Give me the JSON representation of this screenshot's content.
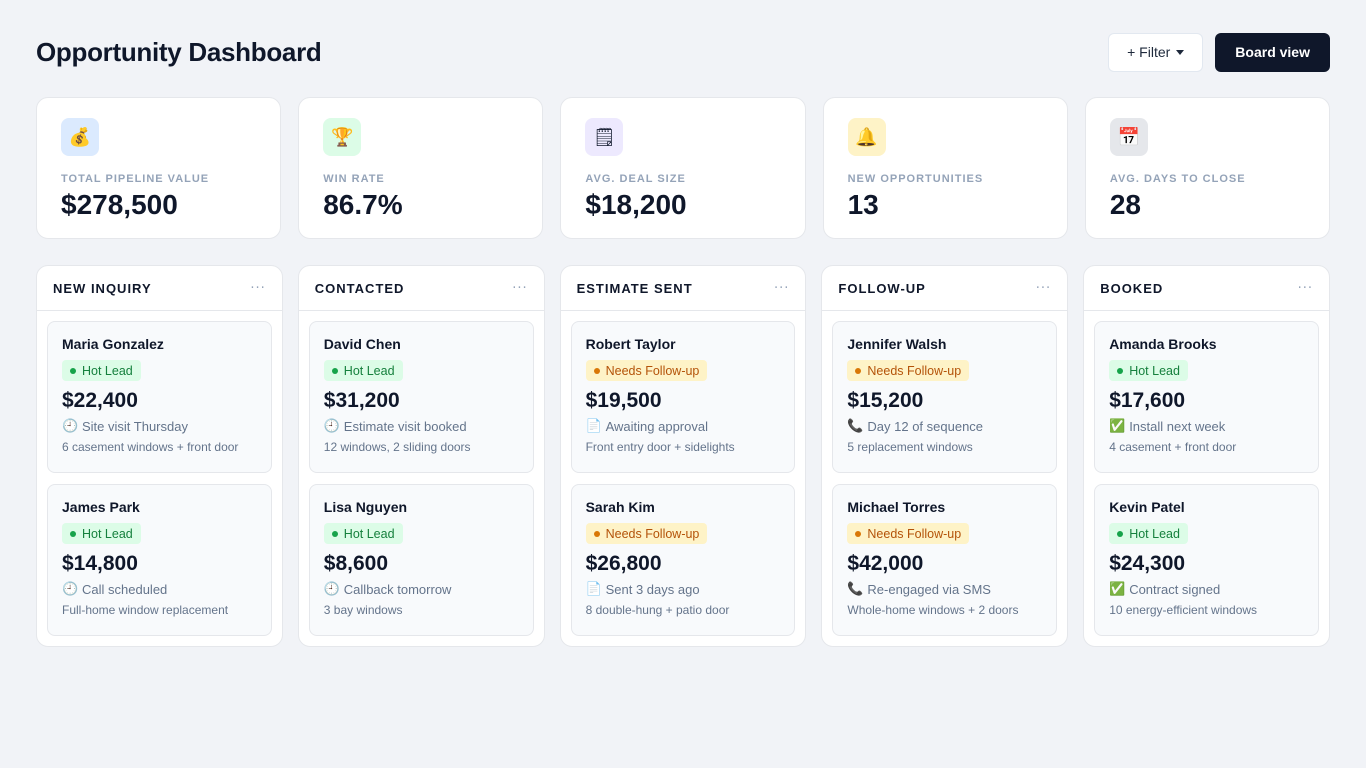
{
  "header": {
    "title": "Opportunity Dashboard",
    "filter_label": "+ Filter",
    "board_view_label": "Board view"
  },
  "stats": [
    {
      "icon": "money-bag-icon",
      "glyph": "💰",
      "bg": "#dbeafe",
      "label": "TOTAL PIPELINE VALUE",
      "value": "$278,500"
    },
    {
      "icon": "trophy-icon",
      "glyph": "🏆",
      "bg": "#dcfce7",
      "label": "WIN RATE",
      "value": "86.7%"
    },
    {
      "icon": "clipboard-icon",
      "glyph": "🗒",
      "bg": "#ede9fe",
      "label": "AVG. DEAL SIZE",
      "value": "$18,200"
    },
    {
      "icon": "bell-icon",
      "glyph": "🔔",
      "bg": "#fef3c7",
      "label": "NEW OPPORTUNITIES",
      "value": "13"
    },
    {
      "icon": "calendar-icon",
      "glyph": "📅",
      "bg": "#e5e7eb",
      "label": "AVG. DAYS TO CLOSE",
      "value": "28"
    }
  ],
  "columns": [
    {
      "title": "NEW INQUIRY",
      "more": "···",
      "cards": [
        {
          "name": "Maria Gonzalez",
          "badge": "Hot Lead",
          "badge_type": "hot",
          "amount": "$22,400",
          "status_icon": "clock-icon",
          "status_glyph": "🕘",
          "status": "Site visit Thursday",
          "detail": "6 casement windows + front door"
        },
        {
          "name": "James Park",
          "badge": "Hot Lead",
          "badge_type": "hot",
          "amount": "$14,800",
          "status_icon": "clock-icon",
          "status_glyph": "🕘",
          "status": "Call scheduled",
          "detail": "Full-home window replacement"
        }
      ]
    },
    {
      "title": "CONTACTED",
      "more": "···",
      "cards": [
        {
          "name": "David Chen",
          "badge": "Hot Lead",
          "badge_type": "hot",
          "amount": "$31,200",
          "status_icon": "clock-icon",
          "status_glyph": "🕘",
          "status": "Estimate visit booked",
          "detail": "12 windows, 2 sliding doors"
        },
        {
          "name": "Lisa Nguyen",
          "badge": "Hot Lead",
          "badge_type": "hot",
          "amount": "$8,600",
          "status_icon": "clock-icon",
          "status_glyph": "🕘",
          "status": "Callback tomorrow",
          "detail": "3 bay windows"
        }
      ]
    },
    {
      "title": "ESTIMATE SENT",
      "more": "···",
      "cards": [
        {
          "name": "Robert Taylor",
          "badge": "Needs Follow-up",
          "badge_type": "follow",
          "amount": "$19,500",
          "status_icon": "document-icon",
          "status_glyph": "📄",
          "status": "Awaiting approval",
          "detail": "Front entry door + sidelights"
        },
        {
          "name": "Sarah Kim",
          "badge": "Needs Follow-up",
          "badge_type": "follow",
          "amount": "$26,800",
          "status_icon": "document-icon",
          "status_glyph": "📄",
          "status": "Sent 3 days ago",
          "detail": "8 double-hung + patio door"
        }
      ]
    },
    {
      "title": "FOLLOW-UP",
      "more": "···",
      "cards": [
        {
          "name": "Jennifer Walsh",
          "badge": "Needs Follow-up",
          "badge_type": "follow",
          "amount": "$15,200",
          "status_icon": "phone-icon",
          "status_glyph": "📞",
          "status": "Day 12 of sequence",
          "detail": "5 replacement windows"
        },
        {
          "name": "Michael Torres",
          "badge": "Needs Follow-up",
          "badge_type": "follow",
          "amount": "$42,000",
          "status_icon": "phone-icon",
          "status_glyph": "📞",
          "status": "Re-engaged via SMS",
          "detail": "Whole-home windows + 2 doors"
        }
      ]
    },
    {
      "title": "BOOKED",
      "more": "···",
      "cards": [
        {
          "name": "Amanda Brooks",
          "badge": "Hot Lead",
          "badge_type": "hot",
          "amount": "$17,600",
          "status_icon": "check-mark-icon",
          "status_glyph": "✅",
          "status": "Install next week",
          "detail": "4 casement + front door"
        },
        {
          "name": "Kevin Patel",
          "badge": "Hot Lead",
          "badge_type": "hot",
          "amount": "$24,300",
          "status_icon": "check-mark-icon",
          "status_glyph": "✅",
          "status": "Contract signed",
          "detail": "10 energy-efficient windows"
        }
      ]
    }
  ]
}
